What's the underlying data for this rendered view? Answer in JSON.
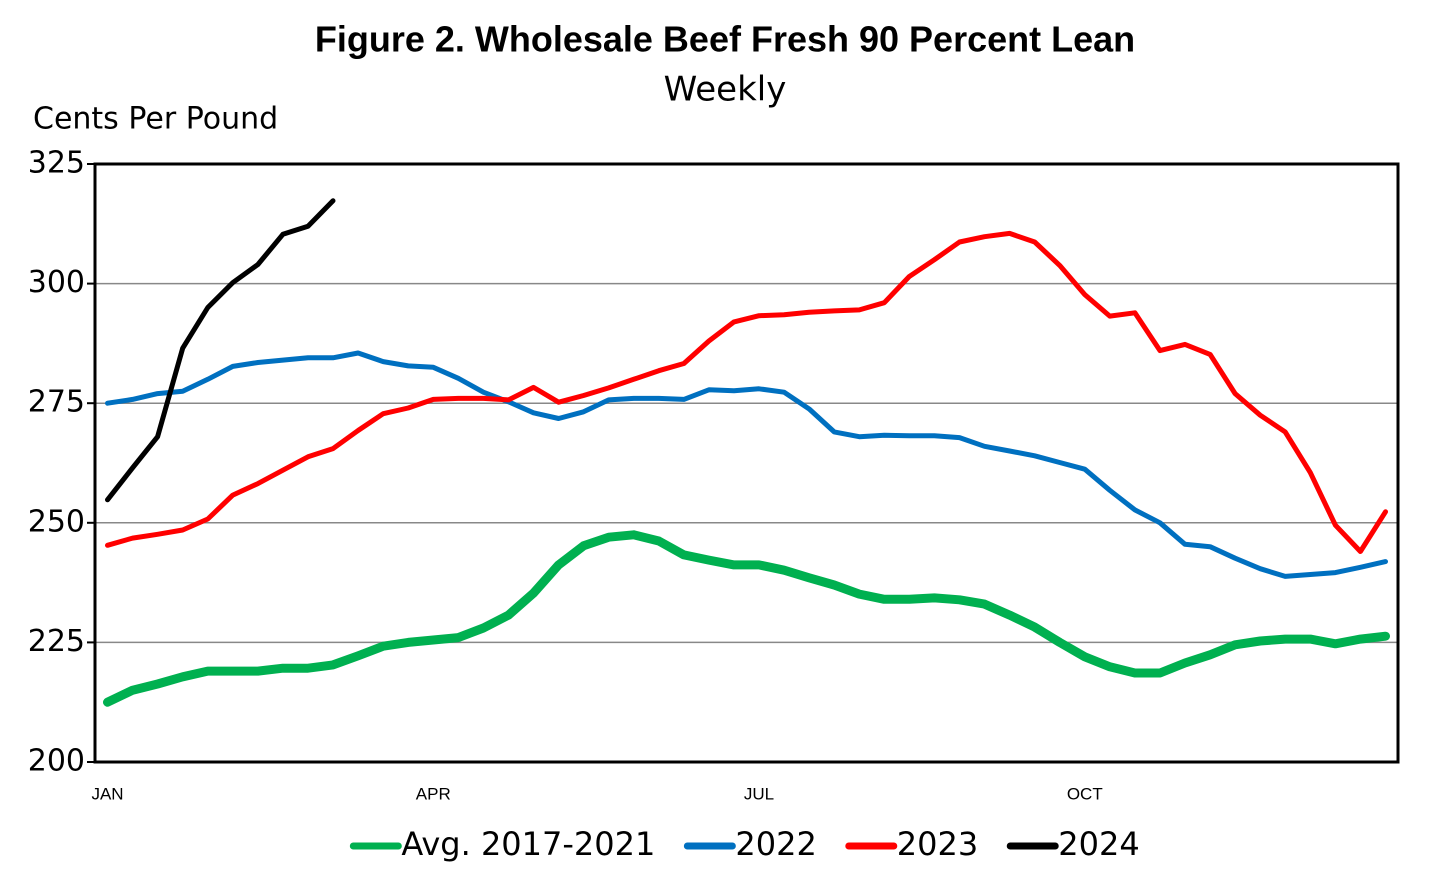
{
  "chart_data": {
    "type": "line",
    "title": "Figure 2. Wholesale Beef Fresh 90 Percent Lean",
    "subtitle": "Weekly",
    "y_label": "Cents Per Pound",
    "categories": [
      "JAN",
      null,
      null,
      null,
      null,
      null,
      null,
      null,
      null,
      null,
      null,
      null,
      null,
      "APR",
      null,
      null,
      null,
      null,
      null,
      null,
      null,
      null,
      null,
      null,
      null,
      null,
      "JUL",
      null,
      null,
      null,
      null,
      null,
      null,
      null,
      null,
      null,
      null,
      null,
      null,
      "OCT",
      null,
      null,
      null,
      null,
      null,
      null,
      null,
      null,
      null,
      null,
      null,
      null
    ],
    "ylim": [
      200,
      325
    ],
    "yticks": [
      200,
      225,
      250,
      275,
      300,
      325
    ],
    "grid": true,
    "series": [
      {
        "name": "Avg. 2017-2021",
        "color": "#00b050",
        "values": [
          212.5,
          215,
          216.3,
          217.8,
          219,
          219,
          219,
          219.6,
          219.6,
          220.3,
          222.2,
          224.2,
          225,
          225.5,
          226,
          228,
          230.7,
          235.3,
          241.2,
          245.2,
          247,
          247.5,
          246.2,
          243.3,
          242.2,
          241.2,
          241.2,
          240.1,
          238.5,
          237,
          235.1,
          234,
          234,
          234.3,
          233.9,
          233,
          230.7,
          228.2,
          225,
          222,
          219.9,
          218.6,
          218.6,
          220.7,
          222.4,
          224.5,
          225.3,
          225.7,
          225.7,
          224.7,
          225.7,
          226.3
        ]
      },
      {
        "name": "2022",
        "color": "#0070c0",
        "values": [
          275,
          275.8,
          277,
          277.5,
          280,
          282.7,
          283.5,
          284,
          284.5,
          284.5,
          285.5,
          283.7,
          282.8,
          282.5,
          280.2,
          277.3,
          275.3,
          273,
          271.8,
          273.2,
          275.7,
          276,
          276,
          275.8,
          277.8,
          277.6,
          278,
          277.3,
          273.8,
          269,
          268,
          268.3,
          268.2,
          268.2,
          267.8,
          266,
          265,
          264,
          262.6,
          261.2,
          256.8,
          252.7,
          250,
          245.5,
          245,
          242.6,
          240.4,
          238.8,
          239.2,
          239.6,
          240.7,
          241.9
        ]
      },
      {
        "name": "2023",
        "color": "#ff0000",
        "values": [
          245.3,
          246.8,
          247.6,
          248.5,
          250.8,
          255.8,
          258.2,
          261,
          263.8,
          265.5,
          269.3,
          272.8,
          274,
          275.8,
          276,
          276,
          275.7,
          278.3,
          275.2,
          276.6,
          278.2,
          280,
          281.8,
          283.3,
          288,
          292,
          293.3,
          293.5,
          294,
          294.3,
          294.5,
          296,
          301.5,
          305,
          308.7,
          309.8,
          310.5,
          308.7,
          303.8,
          297.7,
          293.2,
          293.9,
          286,
          287.3,
          285.2,
          277,
          272.5,
          269,
          260.5,
          249.5,
          244,
          252.3
        ]
      },
      {
        "name": "2024",
        "color": "#000000",
        "values": [
          254.8,
          261.5,
          268,
          286.5,
          295,
          300.2,
          304,
          310.3,
          312,
          317.3,
          null,
          null,
          null,
          null,
          null,
          null,
          null,
          null,
          null,
          null,
          null,
          null,
          null,
          null,
          null,
          null,
          null,
          null,
          null,
          null,
          null,
          null,
          null,
          null,
          null,
          null,
          null,
          null,
          null,
          null,
          null,
          null,
          null,
          null,
          null,
          null,
          null,
          null,
          null,
          null,
          null,
          null
        ]
      }
    ]
  }
}
